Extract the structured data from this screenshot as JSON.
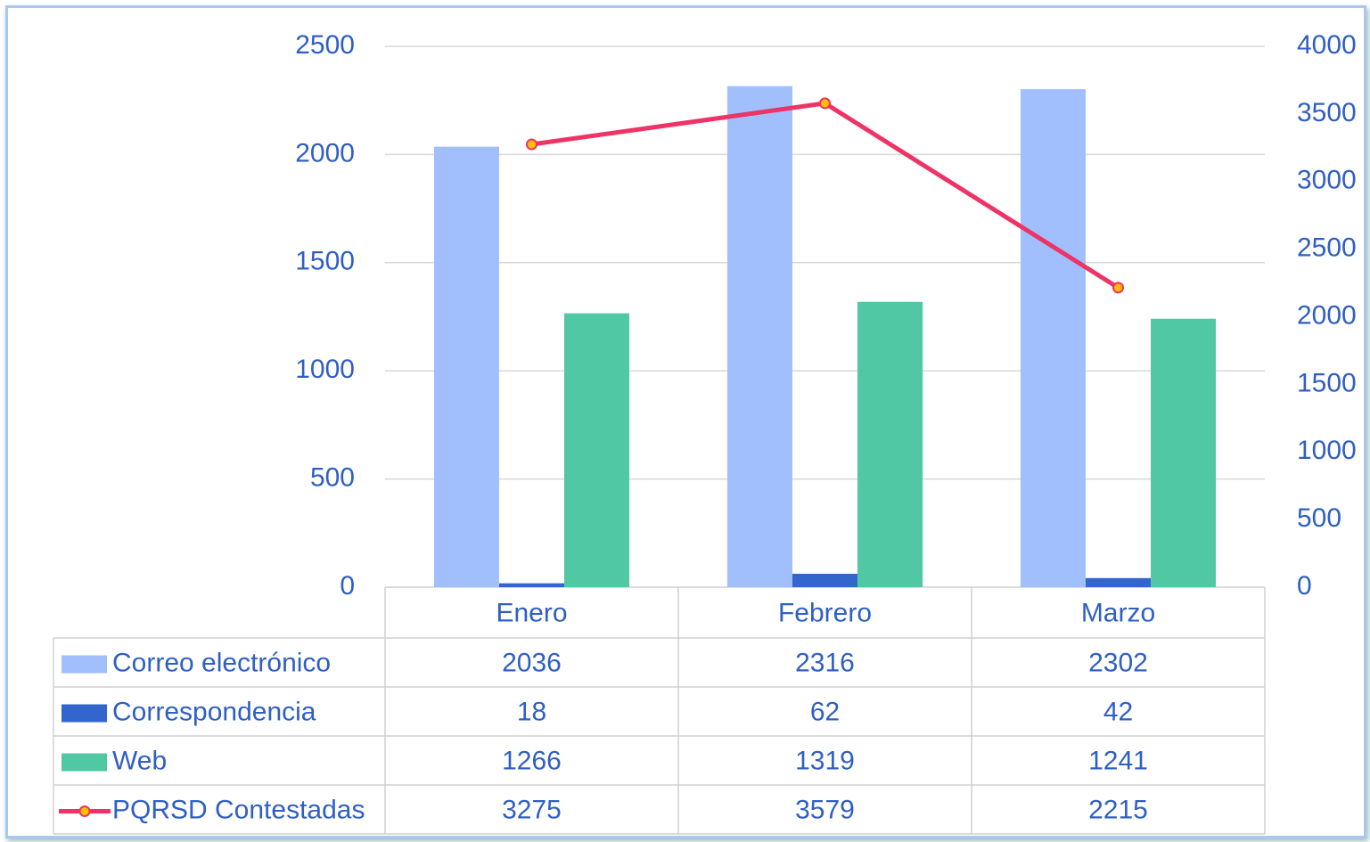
{
  "chart_data": {
    "type": "bar",
    "categories": [
      "Enero",
      "Febrero",
      "Marzo"
    ],
    "series": [
      {
        "name": "Correo electrónico",
        "color": "#a0bffc",
        "values": [
          2036,
          2316,
          2302
        ]
      },
      {
        "name": "Correspondencia",
        "color": "#3366cc",
        "values": [
          18,
          62,
          42
        ]
      },
      {
        "name": "Web",
        "color": "#50c8a3",
        "values": [
          1266,
          1319,
          1241
        ]
      },
      {
        "name": "PQRSD Contestadas",
        "color": "#ee3366",
        "marker_color": "#ffc000",
        "type": "line",
        "axis": "y2",
        "values": [
          3275,
          3579,
          2215
        ]
      }
    ],
    "ylim": [
      0,
      2500
    ],
    "yticks": [
      0,
      500,
      1000,
      1500,
      2000,
      2500
    ],
    "y2lim": [
      0,
      4000
    ],
    "y2ticks": [
      0,
      500,
      1000,
      1500,
      2000,
      2500,
      3000,
      3500,
      4000
    ],
    "grid": true,
    "data_table": true
  }
}
